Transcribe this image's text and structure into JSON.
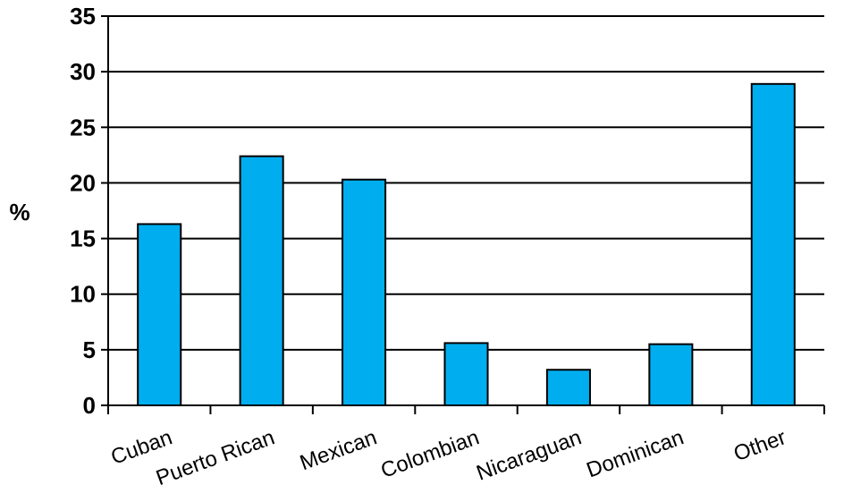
{
  "chart_data": {
    "type": "bar",
    "title": "",
    "xlabel": "",
    "ylabel": "%",
    "ylim": [
      0,
      35
    ],
    "yticks": [
      0,
      5,
      10,
      15,
      20,
      25,
      30,
      35
    ],
    "grid": true,
    "categories": [
      "Cuban",
      "Puerto Rican",
      "Mexican",
      "Colombian",
      "Nicaraguan",
      "Dominican",
      "Other"
    ],
    "values": [
      16.3,
      22.4,
      20.3,
      5.6,
      3.2,
      5.5,
      28.9
    ],
    "colors": {
      "bar": "#00aeef",
      "bar_stroke": "#000000",
      "grid": "#000000"
    }
  }
}
